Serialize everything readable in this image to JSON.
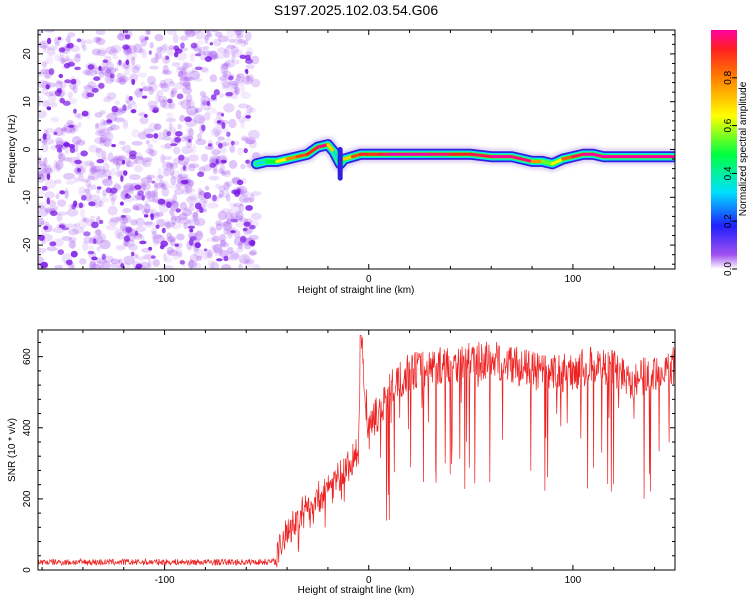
{
  "title": "S197.2025.102.03.54.G06",
  "colors": {
    "snr_line": "#ee2222",
    "noise": "#a050f0"
  },
  "chart_data": [
    {
      "type": "heatmap",
      "xlabel": "Height of straight line (km)",
      "ylabel": "Frequency (Hz)",
      "xlim": [
        -162,
        150
      ],
      "ylim": [
        -25,
        25
      ],
      "x_ticks": [
        -100,
        0,
        100
      ],
      "y_ticks": [
        -20,
        -10,
        0,
        10,
        20
      ],
      "x_tick_labels": [
        "-100",
        "0",
        "100"
      ],
      "y_tick_labels": [
        "-20",
        "-10",
        "0",
        "10",
        "20"
      ],
      "colorbar": {
        "label": "Normalized spectral amplitude",
        "range": [
          0,
          1
        ],
        "ticks": [
          0,
          0.2,
          0.4,
          0.6,
          0.8
        ],
        "tick_labels": [
          "0.0",
          "0.2",
          "0.4",
          "0.6",
          "0.8"
        ]
      },
      "noise_region_x": [
        -162,
        -55
      ],
      "ridge": {
        "x": [
          -55,
          -50,
          -45,
          -40,
          -35,
          -30,
          -25,
          -20,
          -17,
          -14,
          -12,
          -8,
          -4,
          0,
          5,
          10,
          20,
          30,
          40,
          50,
          60,
          70,
          80,
          85,
          90,
          95,
          100,
          105,
          110,
          115,
          120,
          130,
          140,
          150
        ],
        "freq": [
          -3.0,
          -2.5,
          -2.5,
          -2.0,
          -1.5,
          -1.0,
          0.5,
          1.0,
          -0.5,
          -3.0,
          -2.0,
          -1.5,
          -1.0,
          -1.0,
          -1.0,
          -1.0,
          -1.0,
          -1.0,
          -1.0,
          -1.0,
          -1.5,
          -1.5,
          -2.5,
          -2.5,
          -3.0,
          -2.0,
          -1.5,
          -1.0,
          -1.0,
          -1.5,
          -1.5,
          -1.5,
          -1.5,
          -1.5
        ],
        "amplitude": [
          0.25,
          0.4,
          0.55,
          0.75,
          0.85,
          0.9,
          0.95,
          1.0,
          0.4,
          0.3,
          0.6,
          0.8,
          0.95,
          0.9,
          0.9,
          1.0,
          1.0,
          1.0,
          0.95,
          0.9,
          1.0,
          1.0,
          0.95,
          0.6,
          0.5,
          0.8,
          0.9,
          1.0,
          1.0,
          1.0,
          1.0,
          1.0,
          1.0,
          1.0
        ]
      }
    },
    {
      "type": "line",
      "xlabel": "Height of straight line (km)",
      "ylabel": "SNR (10 * v/v)",
      "xlim": [
        -162,
        150
      ],
      "ylim": [
        0,
        675
      ],
      "x_ticks": [
        -100,
        0,
        100
      ],
      "y_ticks": [
        0,
        200,
        400,
        600
      ],
      "x_tick_labels": [
        "-100",
        "0",
        "100"
      ],
      "y_tick_labels": [
        "0",
        "200",
        "400",
        "600"
      ],
      "series": [
        {
          "x": [
            -162,
            -140,
            -120,
            -100,
            -80,
            -60,
            -45,
            -40,
            -30,
            -20,
            -15,
            -10,
            -5,
            -4,
            0,
            5,
            10,
            20,
            30,
            40,
            50,
            60,
            70,
            80,
            90,
            100,
            110,
            120,
            130,
            140,
            150
          ],
          "y": [
            22,
            22,
            22,
            22,
            22,
            22,
            24,
            110,
            160,
            230,
            250,
            290,
            320,
            660,
            380,
            450,
            500,
            560,
            570,
            580,
            585,
            590,
            580,
            560,
            550,
            560,
            575,
            570,
            530,
            560,
            575
          ]
        }
      ]
    }
  ]
}
